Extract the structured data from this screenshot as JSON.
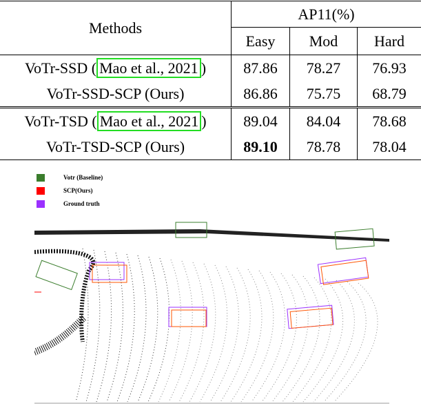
{
  "table": {
    "header": {
      "methods": "Methods",
      "metric": "AP11(%)",
      "columns": [
        "Easy",
        "Mod",
        "Hard"
      ]
    },
    "rows": [
      {
        "prefix": "VoTr-SSD (",
        "citation": "Mao et al., 2021",
        "suffix": ")",
        "values": [
          "87.86",
          "78.27",
          "76.93"
        ]
      },
      {
        "prefix": "VoTr-SSD-SCP (Ours)",
        "values": [
          "86.86",
          "75.75",
          "68.79"
        ]
      },
      {
        "prefix": "VoTr-TSD (",
        "citation": "Mao et al., 2021",
        "suffix": ")",
        "values": [
          "89.04",
          "84.04",
          "78.68"
        ]
      },
      {
        "prefix": "VoTr-TSD-SCP (Ours)",
        "values": [
          "89.10",
          "78.78",
          "78.04"
        ],
        "bold": [
          0
        ]
      }
    ]
  },
  "figure": {
    "legend": [
      {
        "label": "Votr (Baseline)",
        "color": "#3a7d2c"
      },
      {
        "label": "SCP(Ours)",
        "color": "#ff0000"
      },
      {
        "label": "Ground truth",
        "color": "#9b30ff"
      }
    ]
  }
}
